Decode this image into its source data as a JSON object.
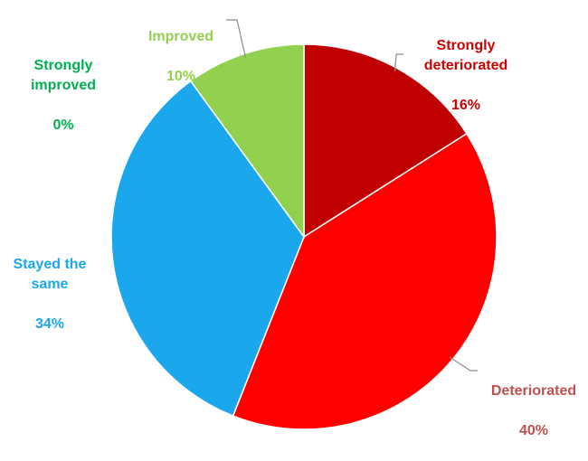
{
  "chart_data": {
    "type": "pie",
    "title": "",
    "slices": [
      {
        "label": "Strongly deteriorated",
        "value": 16,
        "value_label": "16%",
        "color": "#c00000",
        "label_color": "#d00000"
      },
      {
        "label": "Deteriorated",
        "value": 40,
        "value_label": "40%",
        "color": "#ff0000",
        "label_color": "#c0504d"
      },
      {
        "label": "Stayed the same",
        "value": 34,
        "value_label": "34%",
        "color": "#1aa7ec",
        "label_color": "#1aa7ec"
      },
      {
        "label": "Strongly improved",
        "value": 0,
        "value_label": "0%",
        "color": "#00b050",
        "label_color": "#00b050"
      },
      {
        "label": "Improved",
        "value": 10,
        "value_label": "10%",
        "color": "#92d050",
        "label_color": "#92d050"
      }
    ],
    "legend": "none",
    "start_angle": "12 o'clock, clockwise"
  }
}
